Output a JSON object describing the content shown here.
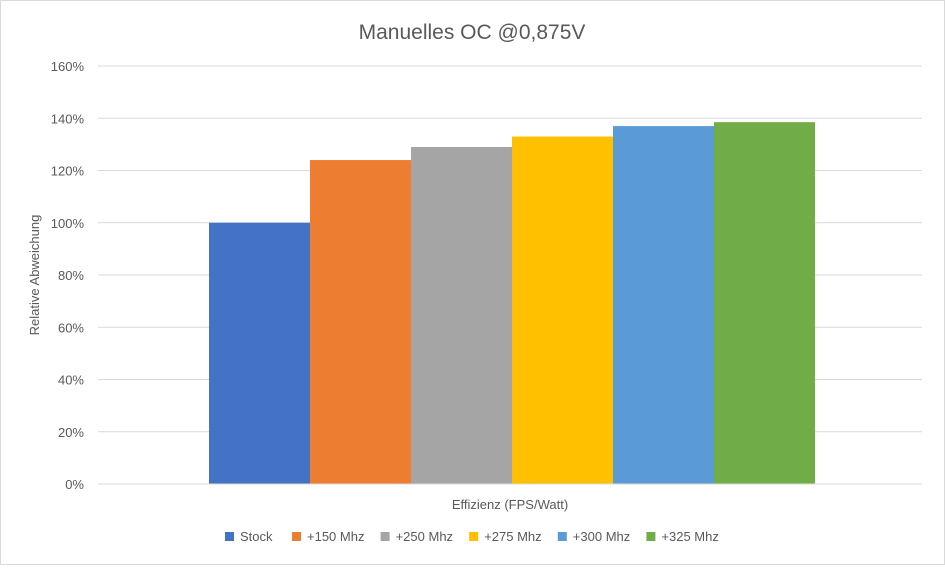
{
  "chart_data": {
    "type": "bar",
    "title": "Manuelles OC @0,875V",
    "xlabel": "Effizienz (FPS/Watt)",
    "ylabel": "Relative Abweichung",
    "ylim": [
      0,
      160
    ],
    "y_ticks": [
      0,
      20,
      40,
      60,
      80,
      100,
      120,
      140,
      160
    ],
    "y_tick_labels": [
      "0%",
      "20%",
      "40%",
      "60%",
      "80%",
      "100%",
      "120%",
      "140%",
      "160%"
    ],
    "grid": true,
    "legend_position": "bottom",
    "categories": [
      "Effizienz (FPS/Watt)"
    ],
    "series": [
      {
        "name": "Stock",
        "values": [
          100
        ],
        "color": "#4472C4"
      },
      {
        "name": "+150 Mhz",
        "values": [
          124
        ],
        "color": "#ED7D31"
      },
      {
        "name": "+250 Mhz",
        "values": [
          129
        ],
        "color": "#A5A5A5"
      },
      {
        "name": "+275 Mhz",
        "values": [
          133
        ],
        "color": "#FFC000"
      },
      {
        "name": "+300 Mhz",
        "values": [
          137
        ],
        "color": "#5B9BD5"
      },
      {
        "name": "+325 Mhz",
        "values": [
          138.5
        ],
        "color": "#70AD47"
      }
    ]
  }
}
